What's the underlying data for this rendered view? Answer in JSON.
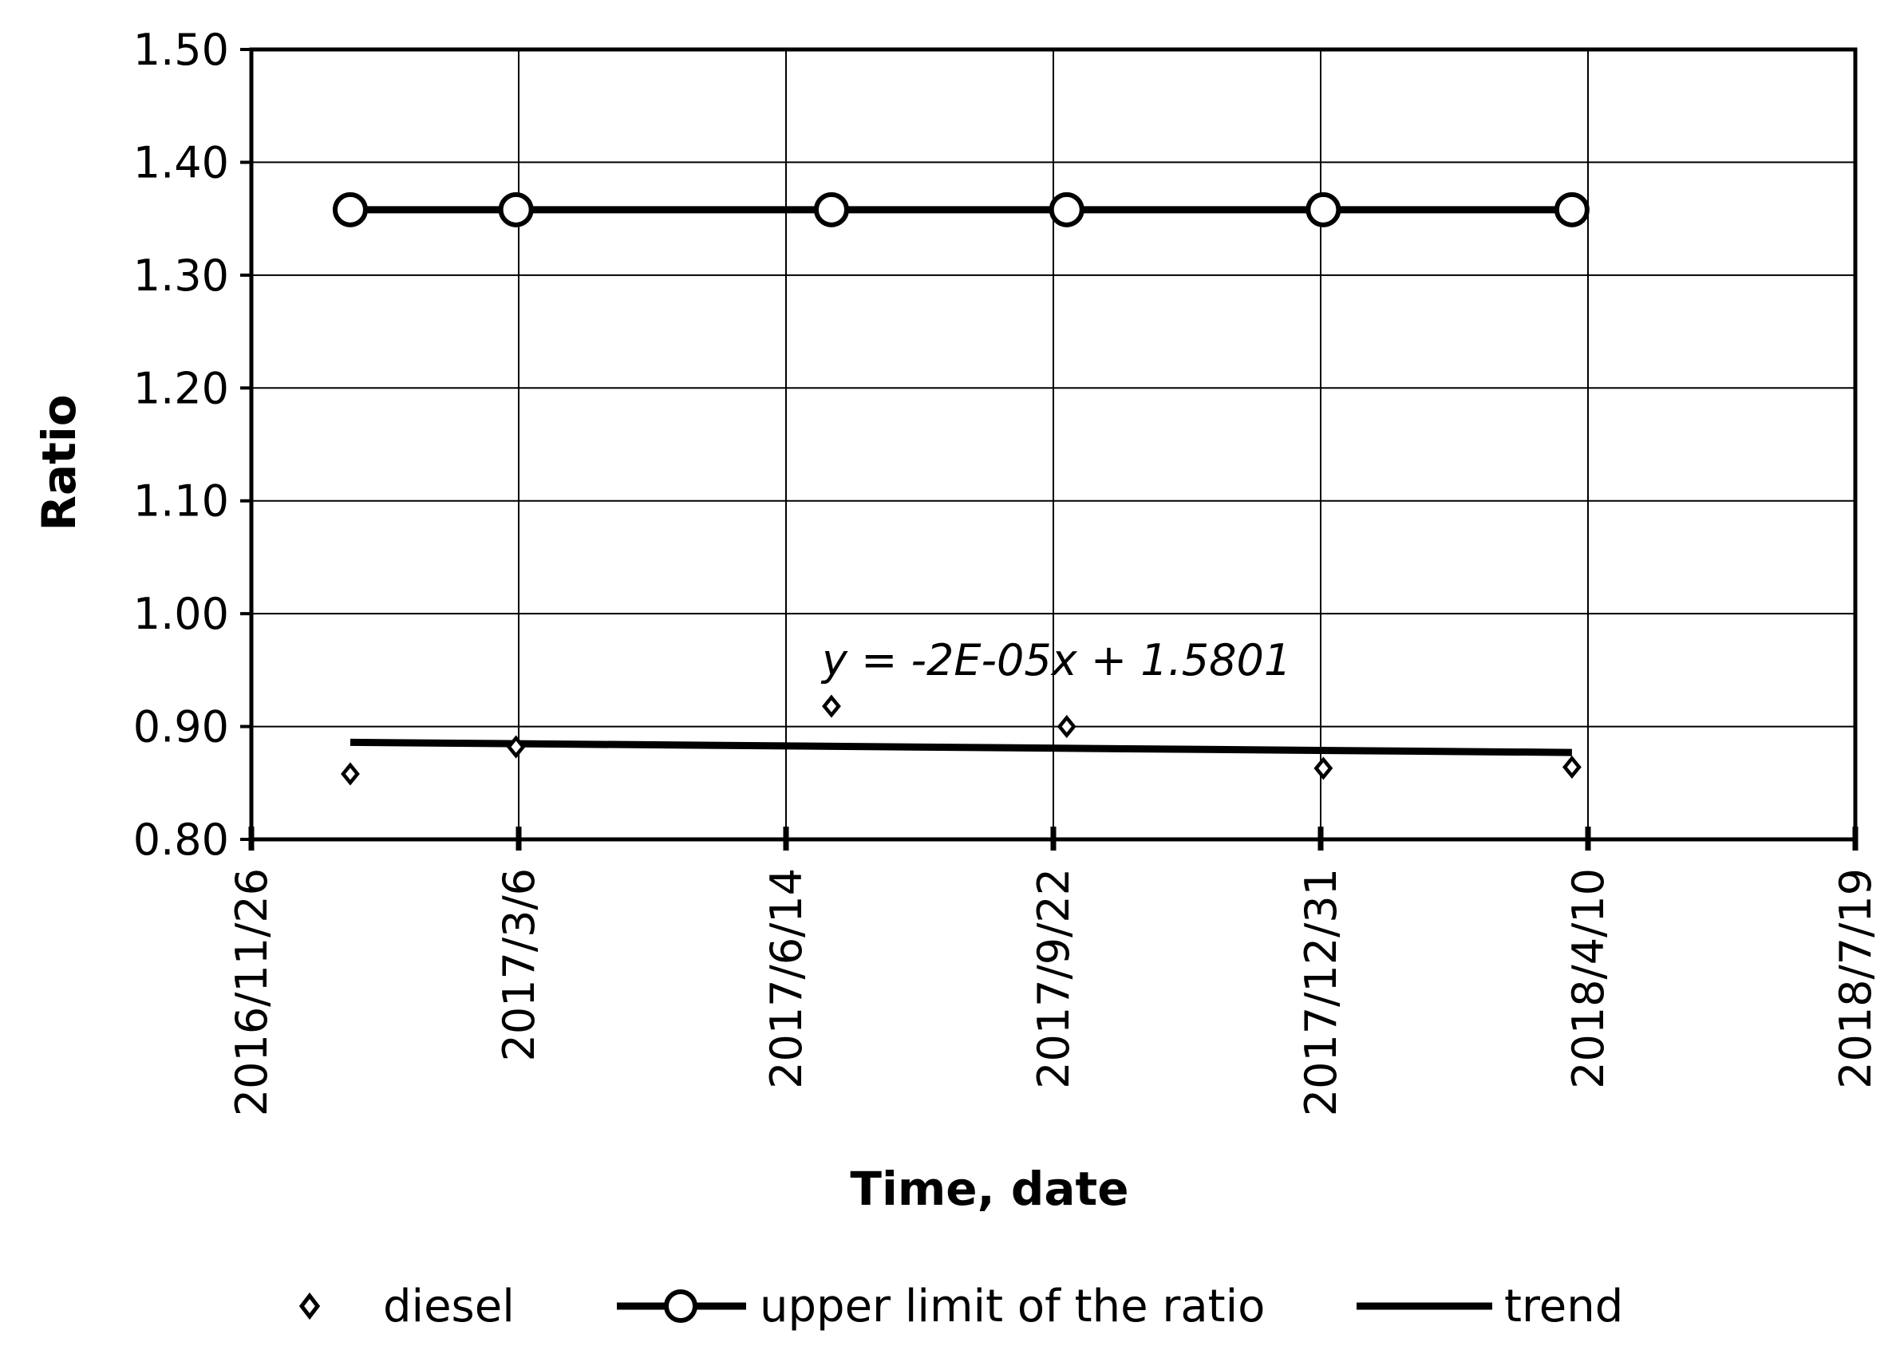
{
  "chart_data": {
    "type": "scatter",
    "xlabel": "Time, date",
    "ylabel": "Ratio",
    "x_tick_labels": [
      "2016/11/26",
      "2017/3/6",
      "2017/6/14",
      "2017/9/22",
      "2017/12/31",
      "2018/4/10",
      "2018/7/19"
    ],
    "x_ticks": [
      "2016-11-26",
      "2017-03-06",
      "2017-06-14",
      "2017-09-22",
      "2017-12-31",
      "2018-04-10",
      "2018-07-19"
    ],
    "xlim": [
      "2016-11-26",
      "2018-07-19"
    ],
    "ylim": [
      0.8,
      1.5
    ],
    "y_tick_labels": [
      "0.80",
      "0.90",
      "1.00",
      "1.10",
      "1.20",
      "1.30",
      "1.40",
      "1.50"
    ],
    "y_ticks": [
      0.8,
      0.9,
      1.0,
      1.1,
      1.2,
      1.3,
      1.4,
      1.5
    ],
    "grid": true,
    "legend_position": "bottom",
    "trendline_equation": "y = -2E-05x + 1.5801",
    "series": [
      {
        "name": "diesel",
        "kind": "markers",
        "marker": "diamond",
        "color": "#000000",
        "points": [
          {
            "x": "2017-01-02",
            "y": 0.858
          },
          {
            "x": "2017-03-05",
            "y": 0.882
          },
          {
            "x": "2017-07-01",
            "y": 0.918
          },
          {
            "x": "2017-09-27",
            "y": 0.9
          },
          {
            "x": "2018-01-01",
            "y": 0.863
          },
          {
            "x": "2018-04-04",
            "y": 0.864
          }
        ]
      },
      {
        "name": "upper limit of the ratio",
        "kind": "line-markers",
        "marker": "circle",
        "color": "#000000",
        "points": [
          {
            "x": "2017-01-02",
            "y": 1.358
          },
          {
            "x": "2017-03-05",
            "y": 1.358
          },
          {
            "x": "2017-07-01",
            "y": 1.358
          },
          {
            "x": "2017-09-27",
            "y": 1.358
          },
          {
            "x": "2018-01-01",
            "y": 1.358
          },
          {
            "x": "2018-04-04",
            "y": 1.358
          }
        ]
      },
      {
        "name": "trend",
        "kind": "line",
        "color": "#000000",
        "points": [
          {
            "x": "2017-01-02",
            "y": 0.886
          },
          {
            "x": "2018-04-04",
            "y": 0.877
          }
        ]
      }
    ]
  }
}
